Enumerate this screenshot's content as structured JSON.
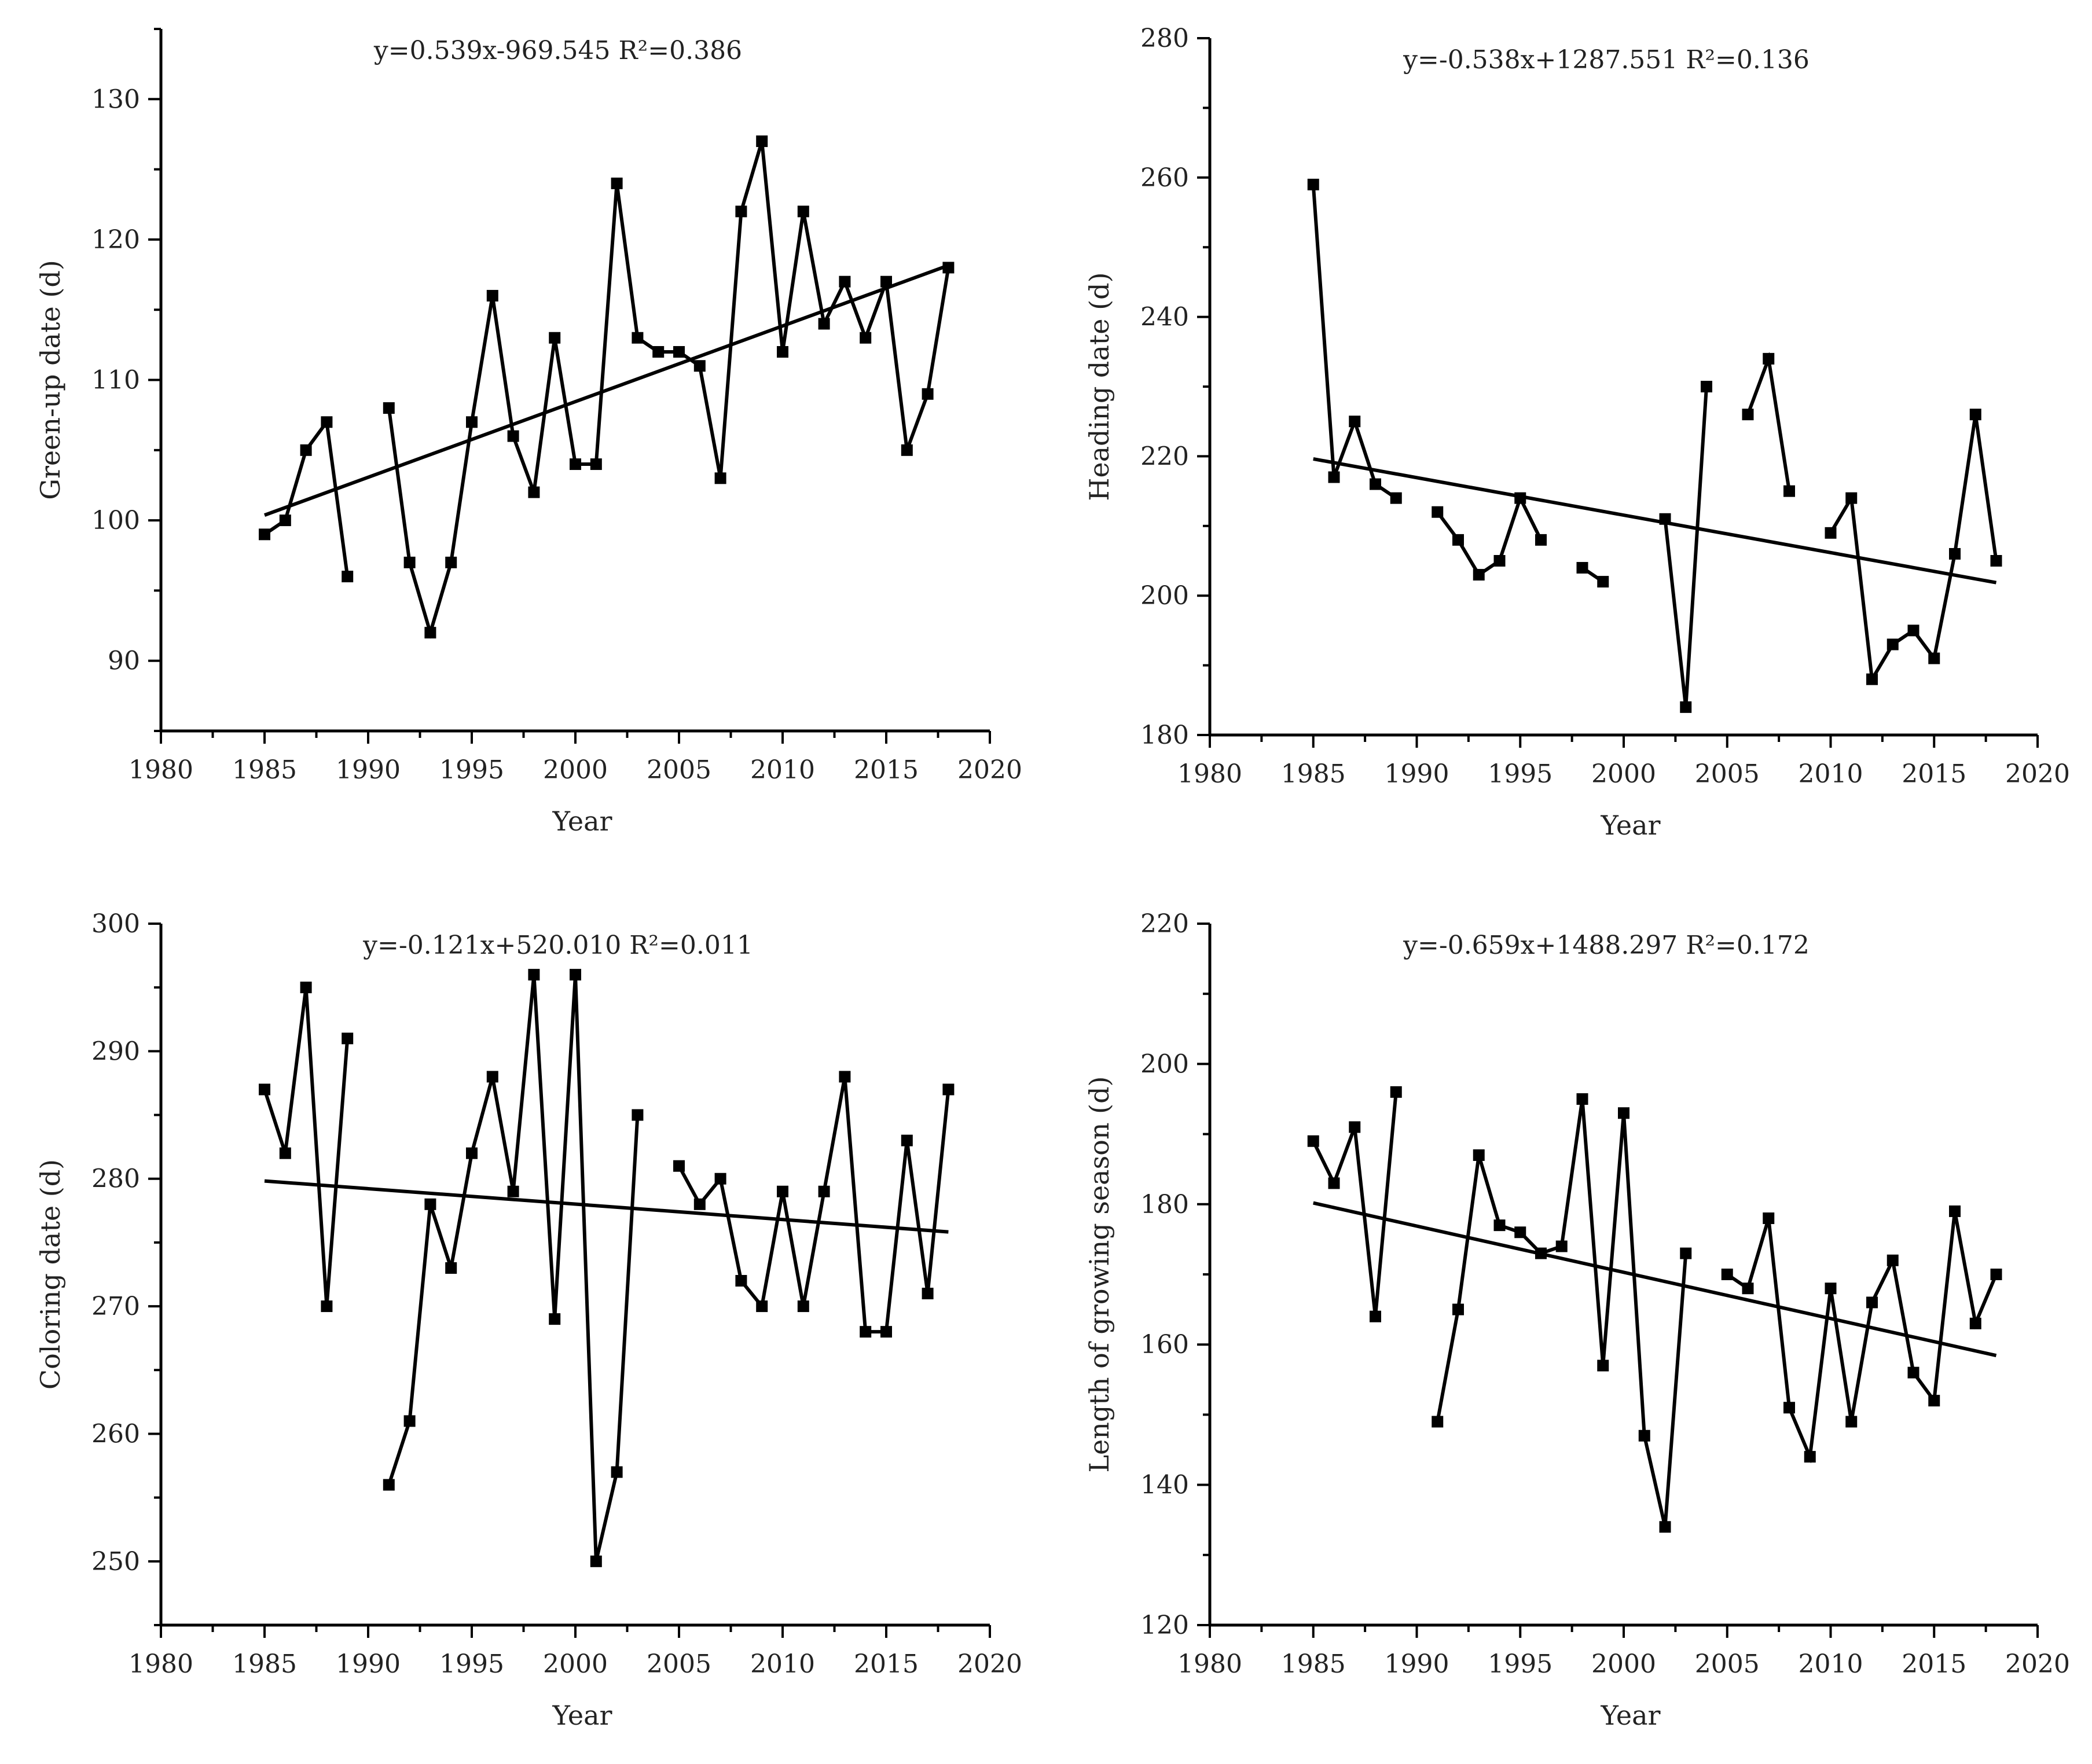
{
  "chart_data": [
    {
      "type": "line",
      "title": "",
      "equation": "y=0.539x-969.545 R²=0.386",
      "xlabel": "Year",
      "ylabel": "Green-up date (d)",
      "xlim": [
        1980,
        2020
      ],
      "ylim": [
        85,
        135
      ],
      "xticks": [
        1980,
        1985,
        1990,
        1995,
        2000,
        2005,
        2010,
        2015,
        2020
      ],
      "yticks": [
        90,
        100,
        110,
        120,
        130
      ],
      "trend": {
        "slope": 0.539,
        "intercept": -969.545,
        "x_range": [
          1985,
          2018
        ]
      },
      "series": [
        {
          "name": "Green-up date",
          "x": [
            1985,
            1986,
            1987,
            1988,
            1989,
            1990,
            1991,
            1992,
            1993,
            1994,
            1995,
            1996,
            1997,
            1998,
            1999,
            2000,
            2001,
            2002,
            2003,
            2004,
            2005,
            2006,
            2007,
            2008,
            2009,
            2010,
            2011,
            2012,
            2013,
            2014,
            2015,
            2016,
            2017,
            2018
          ],
          "y": [
            99,
            100,
            105,
            107,
            96,
            null,
            108,
            97,
            92,
            97,
            107,
            116,
            106,
            102,
            113,
            104,
            104,
            124,
            113,
            112,
            112,
            111,
            103,
            122,
            127,
            112,
            122,
            114,
            117,
            113,
            117,
            105,
            109,
            118
          ]
        }
      ]
    },
    {
      "type": "line",
      "title": "",
      "equation": "y=-0.538x+1287.551 R²=0.136",
      "xlabel": "Year",
      "ylabel": "Heading date (d)",
      "xlim": [
        1980,
        2020
      ],
      "ylim": [
        180,
        280
      ],
      "xticks": [
        1980,
        1985,
        1990,
        1995,
        2000,
        2005,
        2010,
        2015,
        2020
      ],
      "yticks": [
        180,
        200,
        220,
        240,
        260,
        280
      ],
      "trend": {
        "slope": -0.538,
        "intercept": 1287.551,
        "x_range": [
          1985,
          2018
        ]
      },
      "series": [
        {
          "name": "Heading date",
          "x": [
            1985,
            1986,
            1987,
            1988,
            1989,
            1990,
            1991,
            1992,
            1993,
            1994,
            1995,
            1996,
            1997,
            1998,
            1999,
            2000,
            2001,
            2002,
            2003,
            2004,
            2005,
            2006,
            2007,
            2008,
            2009,
            2010,
            2011,
            2012,
            2013,
            2014,
            2015,
            2016,
            2017,
            2018
          ],
          "y": [
            259,
            217,
            225,
            216,
            214,
            null,
            212,
            208,
            203,
            205,
            214,
            208,
            null,
            204,
            202,
            null,
            null,
            211,
            184,
            230,
            null,
            226,
            234,
            215,
            null,
            209,
            214,
            188,
            193,
            195,
            191,
            206,
            226,
            205
          ]
        }
      ]
    },
    {
      "type": "line",
      "title": "",
      "equation": "y=-0.121x+520.010 R²=0.011",
      "xlabel": "Year",
      "ylabel": "Coloring date (d)",
      "xlim": [
        1980,
        2020
      ],
      "ylim": [
        245,
        300
      ],
      "xticks": [
        1980,
        1985,
        1990,
        1995,
        2000,
        2005,
        2010,
        2015,
        2020
      ],
      "yticks": [
        250,
        260,
        270,
        280,
        290,
        300
      ],
      "trend": {
        "slope": -0.121,
        "intercept": 520.01,
        "x_range": [
          1985,
          2018
        ]
      },
      "series": [
        {
          "name": "Coloring date",
          "x": [
            1985,
            1986,
            1987,
            1988,
            1989,
            1990,
            1991,
            1992,
            1993,
            1994,
            1995,
            1996,
            1997,
            1998,
            1999,
            2000,
            2001,
            2002,
            2003,
            2004,
            2005,
            2006,
            2007,
            2008,
            2009,
            2010,
            2011,
            2012,
            2013,
            2014,
            2015,
            2016,
            2017,
            2018
          ],
          "y": [
            287,
            282,
            295,
            270,
            291,
            null,
            256,
            261,
            278,
            273,
            282,
            288,
            279,
            296,
            269,
            296,
            250,
            257,
            285,
            null,
            281,
            278,
            280,
            272,
            270,
            279,
            270,
            279,
            288,
            268,
            268,
            283,
            271,
            287
          ]
        }
      ]
    },
    {
      "type": "line",
      "title": "",
      "equation": "y=-0.659x+1488.297 R²=0.172",
      "xlabel": "Year",
      "ylabel": "Length of growing season (d)",
      "xlim": [
        1980,
        2020
      ],
      "ylim": [
        120,
        220
      ],
      "xticks": [
        1980,
        1985,
        1990,
        1995,
        2000,
        2005,
        2010,
        2015,
        2020
      ],
      "yticks": [
        120,
        140,
        160,
        180,
        200,
        220
      ],
      "trend": {
        "slope": -0.659,
        "intercept": 1488.297,
        "x_range": [
          1985,
          2018
        ]
      },
      "series": [
        {
          "name": "Length of growing season",
          "x": [
            1985,
            1986,
            1987,
            1988,
            1989,
            1990,
            1991,
            1992,
            1993,
            1994,
            1995,
            1996,
            1997,
            1998,
            1999,
            2000,
            2001,
            2002,
            2003,
            2004,
            2005,
            2006,
            2007,
            2008,
            2009,
            2010,
            2011,
            2012,
            2013,
            2014,
            2015,
            2016,
            2017,
            2018
          ],
          "y": [
            189,
            183,
            191,
            164,
            196,
            null,
            149,
            165,
            187,
            177,
            176,
            173,
            174,
            195,
            157,
            193,
            147,
            134,
            173,
            null,
            170,
            168,
            178,
            151,
            144,
            168,
            149,
            166,
            172,
            156,
            152,
            179,
            163,
            170
          ]
        }
      ]
    }
  ]
}
